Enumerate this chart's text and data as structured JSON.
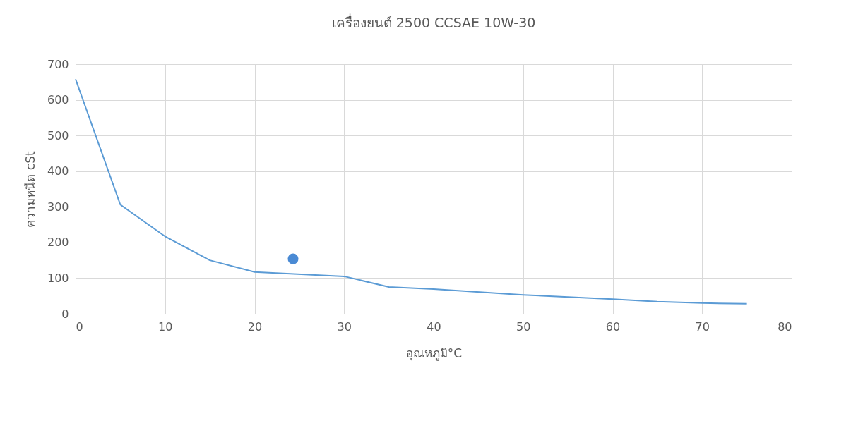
{
  "chart_data": {
    "type": "line",
    "title": "เครื่องยนต์ 2500 CCSAE 10W-30",
    "xlabel": "อุณหภูมิ°C",
    "ylabel": "ความหนืด cSt",
    "xlim": [
      0,
      80
    ],
    "xticks": [
      0,
      10,
      20,
      30,
      40,
      50,
      60,
      70,
      80
    ],
    "ylim": [
      0,
      700
    ],
    "yticks": [
      0,
      100,
      200,
      300,
      400,
      500,
      600,
      700
    ],
    "grid": true,
    "marker": "none",
    "line_style": "solid",
    "series": [
      {
        "color": "#5b9bd5",
        "x": [
          0,
          5,
          10,
          15,
          20,
          30,
          35,
          40,
          50,
          60,
          65,
          70,
          75
        ],
        "values": [
          658,
          306,
          217,
          150,
          117,
          105,
          75,
          69,
          53,
          41,
          34,
          30,
          28
        ]
      },
      {
        "type": "scatter",
        "marker": "circle",
        "color": "#4a8ad4",
        "x": [
          24.3
        ],
        "values": [
          154
        ]
      }
    ]
  }
}
